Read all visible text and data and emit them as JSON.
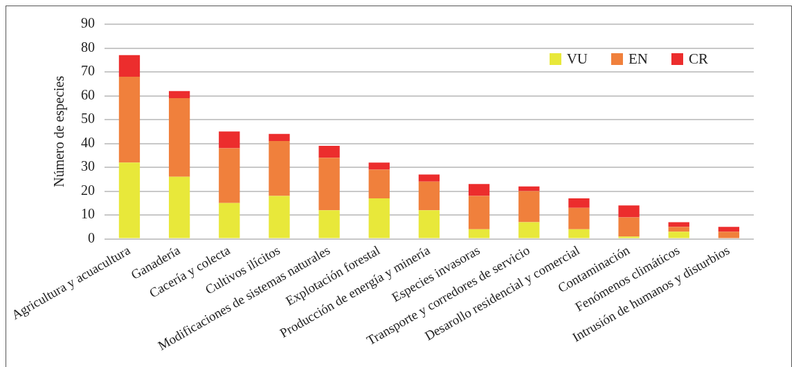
{
  "chart_data": {
    "type": "bar",
    "ylabel": "Número de especies",
    "categories": [
      "Agricultura y acuacultura",
      "Ganadería",
      "Cacería y colecta",
      "Cultivos ilícitos",
      "Modificaciones de sistemas naturales",
      "Explotación forestal",
      "Producción de energía y minería",
      "Especies invasoras",
      "Transporte y corredores de servicio",
      "Desarollo residencial y comercial",
      "Contaminación",
      "Fenómenos climáticos",
      "Intrusión de humanos y disturbios"
    ],
    "series": [
      {
        "name": "VU",
        "color": "#e8e83a",
        "values": [
          32,
          26,
          15,
          18,
          12,
          17,
          12,
          4,
          7,
          4,
          1,
          3,
          0
        ]
      },
      {
        "name": "EN",
        "color": "#f0803c",
        "values": [
          36,
          33,
          23,
          23,
          22,
          12,
          12,
          14,
          13,
          9,
          8,
          2,
          3
        ]
      },
      {
        "name": "CR",
        "color": "#ec2d2d",
        "values": [
          9,
          3,
          7,
          3,
          5,
          3,
          3,
          5,
          2,
          4,
          5,
          2,
          2
        ]
      }
    ],
    "stacked": true,
    "ylim": [
      0,
      90
    ],
    "yticks": [
      0,
      10,
      20,
      30,
      40,
      50,
      60,
      70,
      80,
      90
    ],
    "grid": "y",
    "legend": "top right"
  }
}
